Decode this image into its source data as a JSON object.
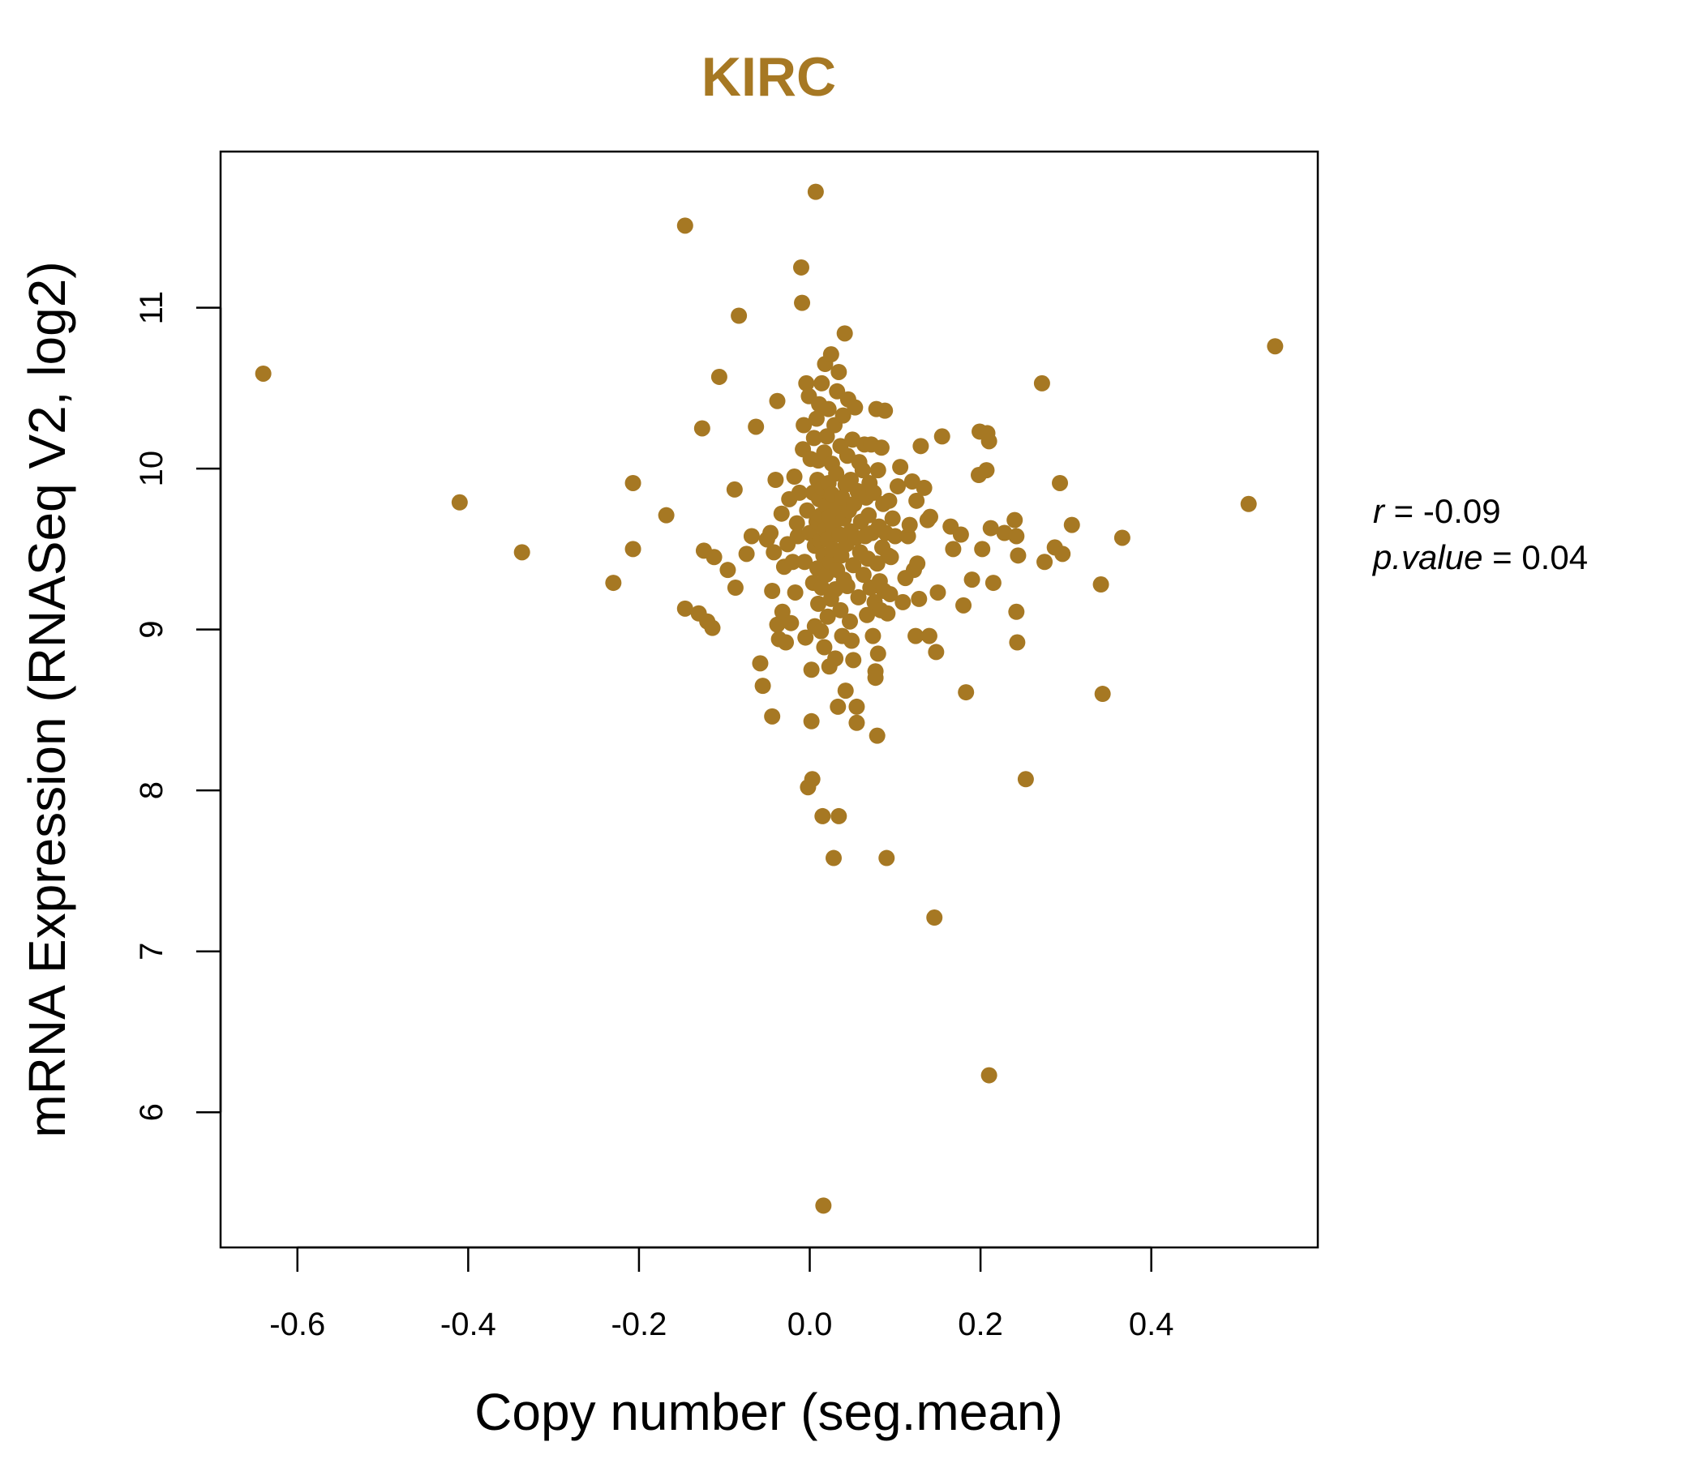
{
  "accent_color": "#A67823",
  "chart_data": {
    "type": "scatter",
    "title": "KIRC",
    "xlabel": "Copy number (seg.mean)",
    "ylabel": "mRNA Expression (RNASeq V2, log2)",
    "xlim": [
      -0.69,
      0.595
    ],
    "ylim": [
      5.16,
      11.97
    ],
    "xticks": [
      "-0.6",
      "-0.4",
      "-0.2",
      "0.0",
      "0.2",
      "0.4"
    ],
    "yticks": [
      "6",
      "7",
      "8",
      "9",
      "10",
      "11"
    ],
    "grid": false,
    "legend": "none",
    "stats": {
      "r_label": "r",
      "r_value": "-0.09",
      "p_label": "p.value",
      "p_value": "0.04",
      "sep": " = "
    },
    "points": [
      [
        -0.64,
        10.59
      ],
      [
        -0.41,
        9.79
      ],
      [
        -0.337,
        9.48
      ],
      [
        -0.23,
        9.29
      ],
      [
        -0.207,
        9.91
      ],
      [
        -0.207,
        9.5
      ],
      [
        -0.168,
        9.71
      ],
      [
        -0.146,
        11.51
      ],
      [
        -0.146,
        9.13
      ],
      [
        -0.13,
        9.1
      ],
      [
        -0.126,
        10.25
      ],
      [
        -0.124,
        9.49
      ],
      [
        -0.12,
        9.05
      ],
      [
        -0.114,
        9.01
      ],
      [
        -0.112,
        9.45
      ],
      [
        -0.106,
        10.57
      ],
      [
        -0.096,
        9.37
      ],
      [
        -0.088,
        9.87
      ],
      [
        -0.087,
        9.26
      ],
      [
        -0.083,
        10.95
      ],
      [
        -0.074,
        9.47
      ],
      [
        -0.068,
        9.58
      ],
      [
        -0.063,
        10.26
      ],
      [
        -0.058,
        8.79
      ],
      [
        -0.055,
        8.65
      ],
      [
        -0.05,
        9.56
      ],
      [
        -0.046,
        9.6
      ],
      [
        -0.044,
        9.24
      ],
      [
        -0.044,
        8.46
      ],
      [
        -0.042,
        9.48
      ],
      [
        -0.04,
        9.93
      ],
      [
        -0.038,
        10.42
      ],
      [
        -0.038,
        9.03
      ],
      [
        -0.036,
        8.94
      ],
      [
        -0.033,
        9.72
      ],
      [
        -0.032,
        9.11
      ],
      [
        -0.03,
        9.39
      ],
      [
        -0.028,
        8.92
      ],
      [
        -0.026,
        9.53
      ],
      [
        -0.024,
        9.81
      ],
      [
        -0.022,
        9.04
      ],
      [
        -0.02,
        9.42
      ],
      [
        -0.018,
        9.95
      ],
      [
        -0.017,
        9.23
      ],
      [
        -0.015,
        9.66
      ],
      [
        -0.014,
        9.58
      ],
      [
        -0.012,
        9.85
      ],
      [
        -0.01,
        11.25
      ],
      [
        -0.009,
        11.03
      ],
      [
        -0.008,
        10.12
      ],
      [
        -0.007,
        10.27
      ],
      [
        -0.006,
        9.42
      ],
      [
        -0.005,
        8.95
      ],
      [
        -0.004,
        10.53
      ],
      [
        -0.003,
        9.74
      ],
      [
        -0.002,
        8.02
      ],
      [
        -0.001,
        10.45
      ],
      [
        0.0,
        9.6
      ],
      [
        0.001,
        10.06
      ],
      [
        0.002,
        8.75
      ],
      [
        0.002,
        8.43
      ],
      [
        0.003,
        8.07
      ],
      [
        0.004,
        9.85
      ],
      [
        0.004,
        9.29
      ],
      [
        0.005,
        10.19
      ],
      [
        0.006,
        9.52
      ],
      [
        0.006,
        9.02
      ],
      [
        0.007,
        11.72
      ],
      [
        0.008,
        10.31
      ],
      [
        0.008,
        9.67
      ],
      [
        0.009,
        9.38
      ],
      [
        0.009,
        9.93
      ],
      [
        0.01,
        10.05
      ],
      [
        0.01,
        9.16
      ],
      [
        0.011,
        9.81
      ],
      [
        0.011,
        10.4
      ],
      [
        0.012,
        9.55
      ],
      [
        0.013,
        9.71
      ],
      [
        0.013,
        8.99
      ],
      [
        0.014,
        10.53
      ],
      [
        0.014,
        9.26
      ],
      [
        0.015,
        7.84
      ],
      [
        0.015,
        9.88
      ],
      [
        0.016,
        9.46
      ],
      [
        0.016,
        5.42
      ],
      [
        0.017,
        10.1
      ],
      [
        0.017,
        8.89
      ],
      [
        0.018,
        9.62
      ],
      [
        0.018,
        10.65
      ],
      [
        0.019,
        9.34
      ],
      [
        0.019,
        9.77
      ],
      [
        0.02,
        10.2
      ],
      [
        0.021,
        9.08
      ],
      [
        0.021,
        9.56
      ],
      [
        0.022,
        9.91
      ],
      [
        0.022,
        10.37
      ],
      [
        0.023,
        8.77
      ],
      [
        0.023,
        9.7
      ],
      [
        0.024,
        9.42
      ],
      [
        0.025,
        10.71
      ],
      [
        0.025,
        9.19
      ],
      [
        0.026,
        9.84
      ],
      [
        0.026,
        10.03
      ],
      [
        0.027,
        9.5
      ],
      [
        0.028,
        7.58
      ],
      [
        0.028,
        9.63
      ],
      [
        0.029,
        10.27
      ],
      [
        0.03,
        9.25
      ],
      [
        0.03,
        8.82
      ],
      [
        0.031,
        9.97
      ],
      [
        0.032,
        10.48
      ],
      [
        0.032,
        9.37
      ],
      [
        0.033,
        8.52
      ],
      [
        0.033,
        9.75
      ],
      [
        0.034,
        7.84
      ],
      [
        0.034,
        10.6
      ],
      [
        0.035,
        9.59
      ],
      [
        0.036,
        9.12
      ],
      [
        0.036,
        10.14
      ],
      [
        0.037,
        9.46
      ],
      [
        0.038,
        8.96
      ],
      [
        0.038,
        9.82
      ],
      [
        0.039,
        10.33
      ],
      [
        0.04,
        9.31
      ],
      [
        0.04,
        9.69
      ],
      [
        0.041,
        10.84
      ],
      [
        0.042,
        8.62
      ],
      [
        0.042,
        9.9
      ],
      [
        0.043,
        9.53
      ],
      [
        0.044,
        10.08
      ],
      [
        0.044,
        9.27
      ],
      [
        0.045,
        10.43
      ],
      [
        0.046,
        9.74
      ],
      [
        0.047,
        9.05
      ],
      [
        0.048,
        9.61
      ],
      [
        0.048,
        9.93
      ],
      [
        0.049,
        8.93
      ],
      [
        0.05,
        10.18
      ],
      [
        0.051,
        9.4
      ],
      [
        0.051,
        8.81
      ],
      [
        0.052,
        9.78
      ],
      [
        0.053,
        10.38
      ],
      [
        0.054,
        9.57
      ],
      [
        0.055,
        8.52
      ],
      [
        0.055,
        8.42
      ],
      [
        0.056,
        9.86
      ],
      [
        0.057,
        9.2
      ],
      [
        0.058,
        10.04
      ],
      [
        0.059,
        9.48
      ],
      [
        0.06,
        9.67
      ],
      [
        0.062,
        9.99
      ],
      [
        0.063,
        9.34
      ],
      [
        0.064,
        10.15
      ],
      [
        0.065,
        9.58
      ],
      [
        0.066,
        9.82
      ],
      [
        0.067,
        9.09
      ],
      [
        0.068,
        9.44
      ],
      [
        0.069,
        9.71
      ],
      [
        0.07,
        9.91
      ],
      [
        0.071,
        9.26
      ],
      [
        0.072,
        10.15
      ],
      [
        0.073,
        9.6
      ],
      [
        0.074,
        8.96
      ],
      [
        0.075,
        9.85
      ],
      [
        0.076,
        9.17
      ],
      [
        0.077,
        8.74
      ],
      [
        0.077,
        8.7
      ],
      [
        0.078,
        10.37
      ],
      [
        0.079,
        8.34
      ],
      [
        0.079,
        9.41
      ],
      [
        0.08,
        8.85
      ],
      [
        0.08,
        9.99
      ],
      [
        0.081,
        9.64
      ],
      [
        0.082,
        9.3
      ],
      [
        0.083,
        9.12
      ],
      [
        0.084,
        10.13
      ],
      [
        0.085,
        9.51
      ],
      [
        0.086,
        9.78
      ],
      [
        0.087,
        9.24
      ],
      [
        0.088,
        10.36
      ],
      [
        0.089,
        9.6
      ],
      [
        0.09,
        7.58
      ],
      [
        0.091,
        9.1
      ],
      [
        0.092,
        9.46
      ],
      [
        0.093,
        9.8
      ],
      [
        0.094,
        9.22
      ],
      [
        0.095,
        9.45
      ],
      [
        0.097,
        9.69
      ],
      [
        0.1,
        9.58
      ],
      [
        0.103,
        9.89
      ],
      [
        0.106,
        10.01
      ],
      [
        0.109,
        9.17
      ],
      [
        0.112,
        9.32
      ],
      [
        0.115,
        9.58
      ],
      [
        0.117,
        9.65
      ],
      [
        0.12,
        9.92
      ],
      [
        0.122,
        9.37
      ],
      [
        0.124,
        8.96
      ],
      [
        0.125,
        9.8
      ],
      [
        0.126,
        9.41
      ],
      [
        0.128,
        9.19
      ],
      [
        0.13,
        10.14
      ],
      [
        0.134,
        9.88
      ],
      [
        0.138,
        9.68
      ],
      [
        0.14,
        8.96
      ],
      [
        0.141,
        9.7
      ],
      [
        0.146,
        7.21
      ],
      [
        0.148,
        8.86
      ],
      [
        0.15,
        9.23
      ],
      [
        0.155,
        10.2
      ],
      [
        0.165,
        9.64
      ],
      [
        0.168,
        9.5
      ],
      [
        0.177,
        9.59
      ],
      [
        0.18,
        9.15
      ],
      [
        0.183,
        8.61
      ],
      [
        0.19,
        9.31
      ],
      [
        0.198,
        9.96
      ],
      [
        0.199,
        10.23
      ],
      [
        0.202,
        9.5
      ],
      [
        0.207,
        9.99
      ],
      [
        0.208,
        10.22
      ],
      [
        0.21,
        10.17
      ],
      [
        0.21,
        6.23
      ],
      [
        0.212,
        9.63
      ],
      [
        0.215,
        9.29
      ],
      [
        0.228,
        9.6
      ],
      [
        0.24,
        9.68
      ],
      [
        0.242,
        9.58
      ],
      [
        0.242,
        9.11
      ],
      [
        0.243,
        8.92
      ],
      [
        0.244,
        9.46
      ],
      [
        0.253,
        8.07
      ],
      [
        0.272,
        10.53
      ],
      [
        0.275,
        9.42
      ],
      [
        0.287,
        9.51
      ],
      [
        0.293,
        9.91
      ],
      [
        0.296,
        9.47
      ],
      [
        0.307,
        9.65
      ],
      [
        0.341,
        9.28
      ],
      [
        0.343,
        8.6
      ],
      [
        0.366,
        9.57
      ],
      [
        0.514,
        9.78
      ],
      [
        0.545,
        10.76
      ]
    ]
  }
}
